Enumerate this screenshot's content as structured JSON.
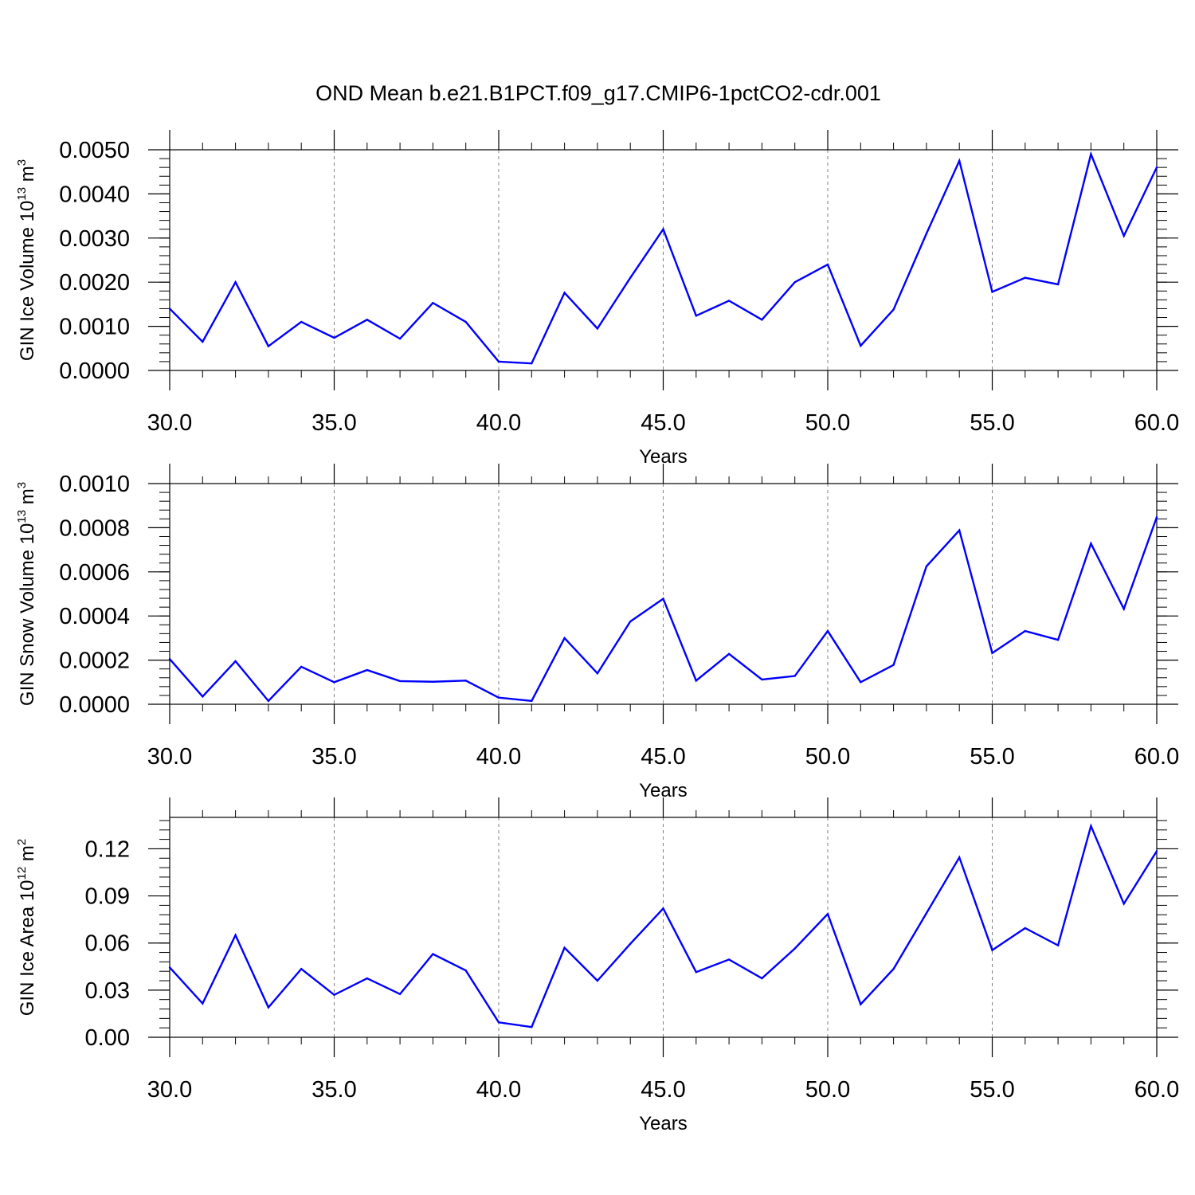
{
  "title": "OND Mean b.e21.B1PCT.f09_g17.CMIP6-1pctCO2-cdr.001",
  "colors": {
    "line": "#0000ff",
    "axis": "#000000",
    "grid": "#808080",
    "background": "#ffffff"
  },
  "chart_data": [
    {
      "type": "line",
      "ylabel": "GIN Ice Volume",
      "yunit_base": "10",
      "yunit_exp": "13",
      "yunit_tail": "m",
      "yunit_tail_exp": "3",
      "xlabel": "Years",
      "xlim": [
        30,
        60
      ],
      "ylim": [
        0,
        0.005
      ],
      "grid": "vertical dashed at major x ticks",
      "x_ticks": [
        30,
        35,
        40,
        45,
        50,
        55,
        60
      ],
      "x_tick_labels": [
        "30.0",
        "35.0",
        "40.0",
        "45.0",
        "50.0",
        "55.0",
        "60.0"
      ],
      "y_ticks": [
        0,
        0.001,
        0.002,
        0.003,
        0.004,
        0.005
      ],
      "y_tick_labels": [
        "0.0000",
        "0.0010",
        "0.0020",
        "0.0030",
        "0.0040",
        "0.0050"
      ],
      "x": [
        30,
        31,
        32,
        33,
        34,
        35,
        36,
        37,
        38,
        39,
        40,
        41,
        42,
        43,
        44,
        45,
        46,
        47,
        48,
        49,
        50,
        51,
        52,
        53,
        54,
        55,
        56,
        57,
        58,
        59,
        60
      ],
      "y": [
        0.0014,
        0.00065,
        0.002,
        0.00055,
        0.0011,
        0.00074,
        0.00115,
        0.00072,
        0.00153,
        0.0011,
        0.0002,
        0.00016,
        0.00176,
        0.00095,
        0.0021,
        0.0032,
        0.00124,
        0.00158,
        0.00115,
        0.002,
        0.0024,
        0.00056,
        0.00138,
        0.0031,
        0.00475,
        0.00178,
        0.0021,
        0.00195,
        0.0049,
        0.00305,
        0.0046
      ]
    },
    {
      "type": "line",
      "ylabel": "GIN Snow Volume",
      "yunit_base": "10",
      "yunit_exp": "13",
      "yunit_tail": "m",
      "yunit_tail_exp": "3",
      "xlabel": "Years",
      "xlim": [
        30,
        60
      ],
      "ylim": [
        0,
        0.001
      ],
      "grid": "vertical dashed at major x ticks",
      "x_ticks": [
        30,
        35,
        40,
        45,
        50,
        55,
        60
      ],
      "x_tick_labels": [
        "30.0",
        "35.0",
        "40.0",
        "45.0",
        "50.0",
        "55.0",
        "60.0"
      ],
      "y_ticks": [
        0,
        0.0002,
        0.0004,
        0.0006,
        0.0008,
        0.001
      ],
      "y_tick_labels": [
        "0.0000",
        "0.0002",
        "0.0004",
        "0.0006",
        "0.0008",
        "0.0010"
      ],
      "x": [
        30,
        31,
        32,
        33,
        34,
        35,
        36,
        37,
        38,
        39,
        40,
        41,
        42,
        43,
        44,
        45,
        46,
        47,
        48,
        49,
        50,
        51,
        52,
        53,
        54,
        55,
        56,
        57,
        58,
        59,
        60
      ],
      "y": [
        0.000205,
        3.5e-05,
        0.000195,
        1.5e-05,
        0.00017,
        0.0001,
        0.000155,
        0.000105,
        0.000102,
        0.000107,
        3e-05,
        1.5e-05,
        0.0003,
        0.00014,
        0.000375,
        0.000478,
        0.000107,
        0.000228,
        0.000112,
        0.000128,
        0.000332,
        0.0001,
        0.000178,
        0.000625,
        0.000788,
        0.000232,
        0.000332,
        0.000292,
        0.000728,
        0.000432,
        0.000848
      ]
    },
    {
      "type": "line",
      "ylabel": "GIN Ice Area",
      "yunit_base": "10",
      "yunit_exp": "12",
      "yunit_tail": "m",
      "yunit_tail_exp": "2",
      "xlabel": "Years",
      "xlim": [
        30,
        60
      ],
      "ylim": [
        0,
        0.14
      ],
      "grid": "vertical dashed at major x ticks",
      "x_ticks": [
        30,
        35,
        40,
        45,
        50,
        55,
        60
      ],
      "x_tick_labels": [
        "30.0",
        "35.0",
        "40.0",
        "45.0",
        "50.0",
        "55.0",
        "60.0"
      ],
      "y_ticks": [
        0,
        0.03,
        0.06,
        0.09,
        0.12
      ],
      "y_tick_labels": [
        "0.00",
        "0.03",
        "0.06",
        "0.09",
        "0.12"
      ],
      "x": [
        30,
        31,
        32,
        33,
        34,
        35,
        36,
        37,
        38,
        39,
        40,
        41,
        42,
        43,
        44,
        45,
        46,
        47,
        48,
        49,
        50,
        51,
        52,
        53,
        54,
        55,
        56,
        57,
        58,
        59,
        60
      ],
      "y": [
        0.0445,
        0.0215,
        0.065,
        0.019,
        0.0435,
        0.027,
        0.0375,
        0.0275,
        0.053,
        0.0425,
        0.0095,
        0.0065,
        0.057,
        0.036,
        0.0595,
        0.082,
        0.0415,
        0.0495,
        0.0375,
        0.0565,
        0.0785,
        0.021,
        0.0435,
        0.079,
        0.1145,
        0.0555,
        0.0695,
        0.0585,
        0.1345,
        0.085,
        0.1185
      ]
    }
  ]
}
